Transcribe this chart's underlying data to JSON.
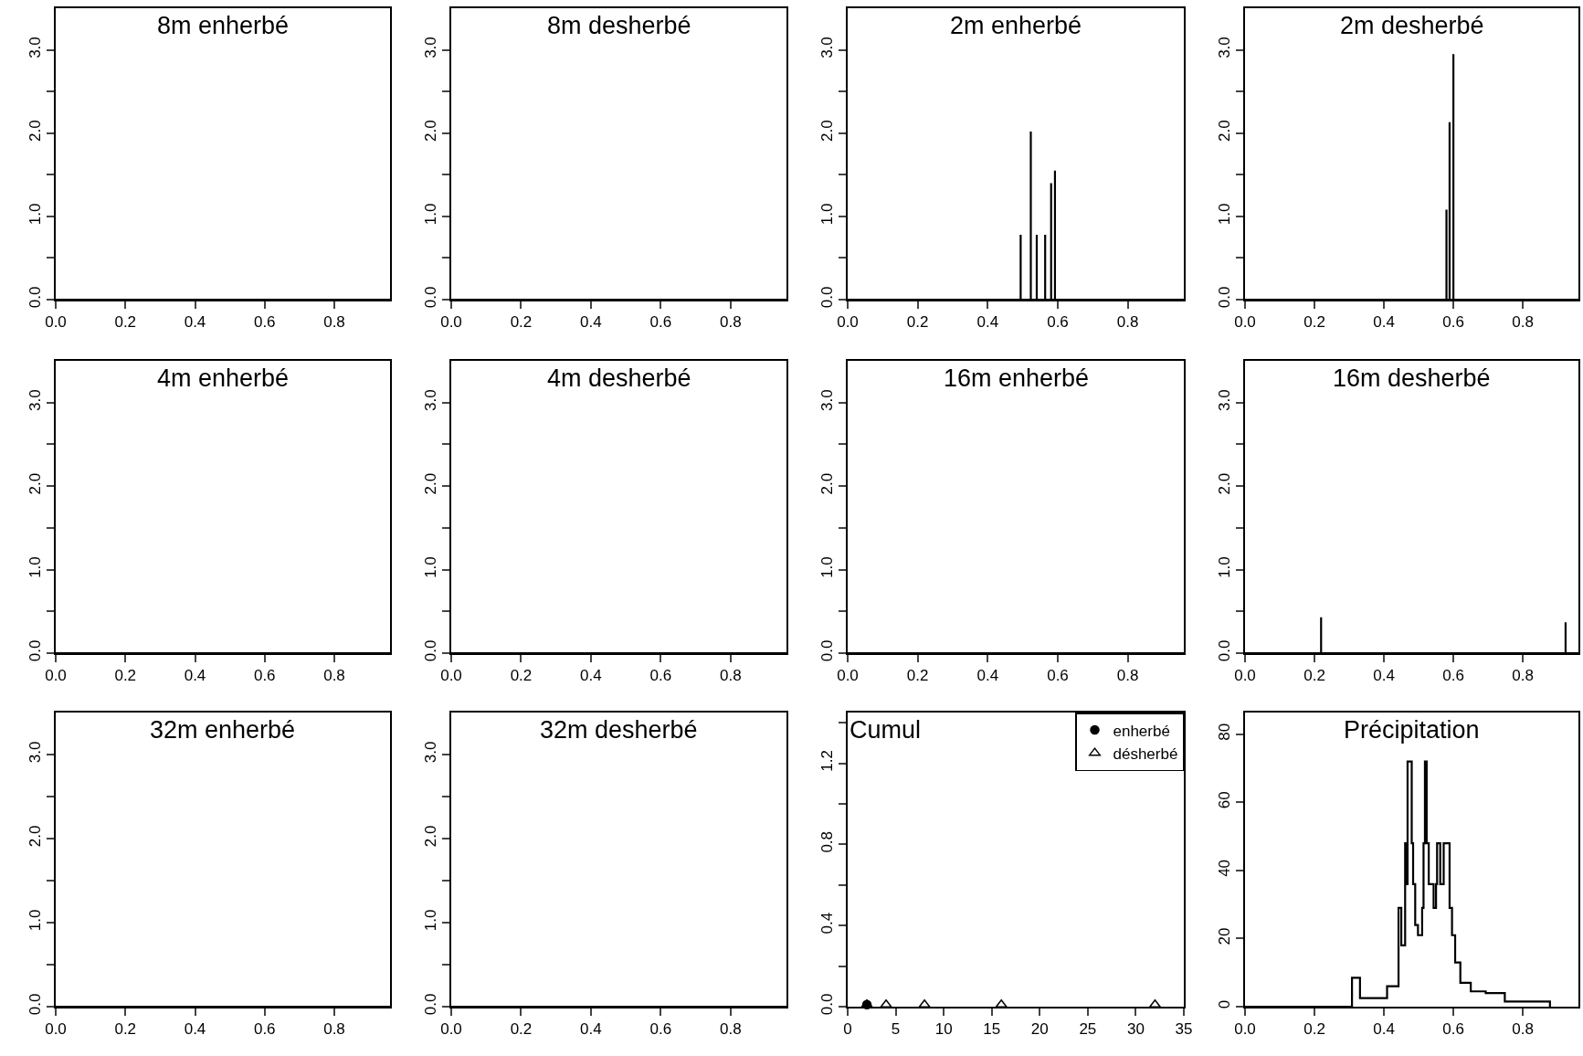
{
  "chart_data": [
    {
      "type": "line",
      "title": "8m enherbé",
      "xlim": [
        0,
        0.96
      ],
      "ylim": [
        0,
        3.5
      ],
      "xticks": [
        {
          "value": 0,
          "label": "0.0"
        },
        {
          "value": 0.2,
          "label": "0.2"
        },
        {
          "value": 0.4,
          "label": "0.4"
        },
        {
          "value": 0.6,
          "label": "0.6"
        },
        {
          "value": 0.8,
          "label": "0.8"
        }
      ],
      "yticks": [
        {
          "value": 0,
          "label": "0.0"
        },
        {
          "value": 0.5,
          "label": null
        },
        {
          "value": 1,
          "label": "1.0"
        },
        {
          "value": 1.5,
          "label": null
        },
        {
          "value": 2,
          "label": "2.0"
        },
        {
          "value": 2.5,
          "label": null
        },
        {
          "value": 3,
          "label": "3.0"
        }
      ],
      "series": [
        {
          "color": "#000000",
          "x": [
            0,
            0.96
          ],
          "values": [
            0,
            0
          ]
        }
      ]
    },
    {
      "type": "line",
      "title": "8m desherbé",
      "xlim": [
        0,
        0.96
      ],
      "ylim": [
        0,
        3.5
      ],
      "xticks": [
        {
          "value": 0,
          "label": "0.0"
        },
        {
          "value": 0.2,
          "label": "0.2"
        },
        {
          "value": 0.4,
          "label": "0.4"
        },
        {
          "value": 0.6,
          "label": "0.6"
        },
        {
          "value": 0.8,
          "label": "0.8"
        }
      ],
      "yticks": [
        {
          "value": 0,
          "label": "0.0"
        },
        {
          "value": 0.5,
          "label": null
        },
        {
          "value": 1,
          "label": "1.0"
        },
        {
          "value": 1.5,
          "label": null
        },
        {
          "value": 2,
          "label": "2.0"
        },
        {
          "value": 2.5,
          "label": null
        },
        {
          "value": 3,
          "label": "3.0"
        }
      ],
      "series": [
        {
          "color": "#000000",
          "x": [
            0,
            0.96
          ],
          "values": [
            0,
            0
          ]
        }
      ]
    },
    {
      "type": "line",
      "title": "2m enherbé",
      "xlim": [
        0,
        0.96
      ],
      "ylim": [
        0,
        3.5
      ],
      "xticks": [
        {
          "value": 0,
          "label": "0.0"
        },
        {
          "value": 0.2,
          "label": "0.2"
        },
        {
          "value": 0.4,
          "label": "0.4"
        },
        {
          "value": 0.6,
          "label": "0.6"
        },
        {
          "value": 0.8,
          "label": "0.8"
        }
      ],
      "yticks": [
        {
          "value": 0,
          "label": "0.0"
        },
        {
          "value": 0.5,
          "label": null
        },
        {
          "value": 1,
          "label": "1.0"
        },
        {
          "value": 1.5,
          "label": null
        },
        {
          "value": 2,
          "label": "2.0"
        },
        {
          "value": 2.5,
          "label": null
        },
        {
          "value": 3,
          "label": "3.0"
        }
      ],
      "series": [
        {
          "color": "#000000",
          "x": [
            0,
            0.494,
            0.494,
            0.494,
            0.523,
            0.523,
            0.523,
            0.54,
            0.54,
            0.54,
            0.564,
            0.564,
            0.564,
            0.581,
            0.581,
            0.581,
            0.592,
            0.592,
            0.592,
            0.96
          ],
          "values": [
            0,
            0,
            0.78,
            0,
            0,
            2.02,
            0,
            0,
            0.78,
            0,
            0,
            0.78,
            0,
            0,
            1.4,
            0,
            0,
            1.55,
            0,
            0
          ]
        }
      ]
    },
    {
      "type": "line",
      "title": "2m desherbé",
      "xlim": [
        0,
        0.96
      ],
      "ylim": [
        0,
        3.5
      ],
      "xticks": [
        {
          "value": 0,
          "label": "0.0"
        },
        {
          "value": 0.2,
          "label": "0.2"
        },
        {
          "value": 0.4,
          "label": "0.4"
        },
        {
          "value": 0.6,
          "label": "0.6"
        },
        {
          "value": 0.8,
          "label": "0.8"
        }
      ],
      "yticks": [
        {
          "value": 0,
          "label": "0.0"
        },
        {
          "value": 0.5,
          "label": null
        },
        {
          "value": 1,
          "label": "1.0"
        },
        {
          "value": 1.5,
          "label": null
        },
        {
          "value": 2,
          "label": "2.0"
        },
        {
          "value": 2.5,
          "label": null
        },
        {
          "value": 3,
          "label": "3.0"
        }
      ],
      "series": [
        {
          "color": "#000000",
          "x": [
            0,
            0.58,
            0.58,
            0.58,
            0.589,
            0.589,
            0.589,
            0.6,
            0.6,
            0.6,
            0.96
          ],
          "values": [
            0,
            0,
            1.08,
            0,
            0,
            2.13,
            0,
            0,
            2.95,
            0,
            0
          ]
        }
      ]
    },
    {
      "type": "line",
      "title": "4m enherbé",
      "xlim": [
        0,
        0.96
      ],
      "ylim": [
        0,
        3.5
      ],
      "xticks": [
        {
          "value": 0,
          "label": "0.0"
        },
        {
          "value": 0.2,
          "label": "0.2"
        },
        {
          "value": 0.4,
          "label": "0.4"
        },
        {
          "value": 0.6,
          "label": "0.6"
        },
        {
          "value": 0.8,
          "label": "0.8"
        }
      ],
      "yticks": [
        {
          "value": 0,
          "label": "0.0"
        },
        {
          "value": 0.5,
          "label": null
        },
        {
          "value": 1,
          "label": "1.0"
        },
        {
          "value": 1.5,
          "label": null
        },
        {
          "value": 2,
          "label": "2.0"
        },
        {
          "value": 2.5,
          "label": null
        },
        {
          "value": 3,
          "label": "3.0"
        }
      ],
      "series": [
        {
          "color": "#000000",
          "x": [
            0,
            0.96
          ],
          "values": [
            0,
            0
          ]
        }
      ]
    },
    {
      "type": "line",
      "title": "4m desherbé",
      "xlim": [
        0,
        0.96
      ],
      "ylim": [
        0,
        3.5
      ],
      "xticks": [
        {
          "value": 0,
          "label": "0.0"
        },
        {
          "value": 0.2,
          "label": "0.2"
        },
        {
          "value": 0.4,
          "label": "0.4"
        },
        {
          "value": 0.6,
          "label": "0.6"
        },
        {
          "value": 0.8,
          "label": "0.8"
        }
      ],
      "yticks": [
        {
          "value": 0,
          "label": "0.0"
        },
        {
          "value": 0.5,
          "label": null
        },
        {
          "value": 1,
          "label": "1.0"
        },
        {
          "value": 1.5,
          "label": null
        },
        {
          "value": 2,
          "label": "2.0"
        },
        {
          "value": 2.5,
          "label": null
        },
        {
          "value": 3,
          "label": "3.0"
        }
      ],
      "series": [
        {
          "color": "#000000",
          "x": [
            0,
            0.96
          ],
          "values": [
            0,
            0
          ]
        }
      ]
    },
    {
      "type": "line",
      "title": "16m enherbé",
      "xlim": [
        0,
        0.96
      ],
      "ylim": [
        0,
        3.5
      ],
      "xticks": [
        {
          "value": 0,
          "label": "0.0"
        },
        {
          "value": 0.2,
          "label": "0.2"
        },
        {
          "value": 0.4,
          "label": "0.4"
        },
        {
          "value": 0.6,
          "label": "0.6"
        },
        {
          "value": 0.8,
          "label": "0.8"
        }
      ],
      "yticks": [
        {
          "value": 0,
          "label": "0.0"
        },
        {
          "value": 0.5,
          "label": null
        },
        {
          "value": 1,
          "label": "1.0"
        },
        {
          "value": 1.5,
          "label": null
        },
        {
          "value": 2,
          "label": "2.0"
        },
        {
          "value": 2.5,
          "label": null
        },
        {
          "value": 3,
          "label": "3.0"
        }
      ],
      "series": [
        {
          "color": "#000000",
          "x": [
            0,
            0.96
          ],
          "values": [
            0,
            0
          ]
        }
      ]
    },
    {
      "type": "line",
      "title": "16m desherbé",
      "xlim": [
        0,
        0.96
      ],
      "ylim": [
        0,
        3.5
      ],
      "xticks": [
        {
          "value": 0,
          "label": "0.0"
        },
        {
          "value": 0.2,
          "label": "0.2"
        },
        {
          "value": 0.4,
          "label": "0.4"
        },
        {
          "value": 0.6,
          "label": "0.6"
        },
        {
          "value": 0.8,
          "label": "0.8"
        }
      ],
      "yticks": [
        {
          "value": 0,
          "label": "0.0"
        },
        {
          "value": 0.5,
          "label": null
        },
        {
          "value": 1,
          "label": "1.0"
        },
        {
          "value": 1.5,
          "label": null
        },
        {
          "value": 2,
          "label": "2.0"
        },
        {
          "value": 2.5,
          "label": null
        },
        {
          "value": 3,
          "label": "3.0"
        }
      ],
      "series": [
        {
          "color": "#000000",
          "x": [
            0,
            0.219,
            0.219,
            0.219,
            0.775,
            0.775,
            0.775,
            0.923,
            0.923,
            0.923,
            0.96
          ],
          "values": [
            0,
            0,
            0.43,
            0,
            0,
            0.01,
            0,
            0,
            0.37,
            0,
            0
          ]
        }
      ]
    },
    {
      "type": "line",
      "title": "32m enherbé",
      "xlim": [
        0,
        0.96
      ],
      "ylim": [
        0,
        3.5
      ],
      "xticks": [
        {
          "value": 0,
          "label": "0.0"
        },
        {
          "value": 0.2,
          "label": "0.2"
        },
        {
          "value": 0.4,
          "label": "0.4"
        },
        {
          "value": 0.6,
          "label": "0.6"
        },
        {
          "value": 0.8,
          "label": "0.8"
        }
      ],
      "yticks": [
        {
          "value": 0,
          "label": "0.0"
        },
        {
          "value": 0.5,
          "label": null
        },
        {
          "value": 1,
          "label": "1.0"
        },
        {
          "value": 1.5,
          "label": null
        },
        {
          "value": 2,
          "label": "2.0"
        },
        {
          "value": 2.5,
          "label": null
        },
        {
          "value": 3,
          "label": "3.0"
        }
      ],
      "series": [
        {
          "color": "#000000",
          "x": [
            0,
            0.96
          ],
          "values": [
            0,
            0
          ]
        }
      ]
    },
    {
      "type": "line",
      "title": "32m desherbé",
      "xlim": [
        0,
        0.96
      ],
      "ylim": [
        0,
        3.5
      ],
      "xticks": [
        {
          "value": 0,
          "label": "0.0"
        },
        {
          "value": 0.2,
          "label": "0.2"
        },
        {
          "value": 0.4,
          "label": "0.4"
        },
        {
          "value": 0.6,
          "label": "0.6"
        },
        {
          "value": 0.8,
          "label": "0.8"
        }
      ],
      "yticks": [
        {
          "value": 0,
          "label": "0.0"
        },
        {
          "value": 0.5,
          "label": null
        },
        {
          "value": 1,
          "label": "1.0"
        },
        {
          "value": 1.5,
          "label": null
        },
        {
          "value": 2,
          "label": "2.0"
        },
        {
          "value": 2.5,
          "label": null
        },
        {
          "value": 3,
          "label": "3.0"
        }
      ],
      "series": [
        {
          "color": "#000000",
          "x": [
            0,
            0.96
          ],
          "values": [
            0,
            0
          ]
        }
      ]
    },
    {
      "type": "scatter",
      "title": "Cumul",
      "legend": "top right",
      "xlim": [
        0,
        35
      ],
      "ylim": [
        0,
        1.45
      ],
      "xticks": [
        0,
        5,
        10,
        15,
        20,
        25,
        30,
        35
      ],
      "yticks": [
        {
          "value": 0,
          "label": "0.0"
        },
        {
          "value": 0.2,
          "label": null
        },
        {
          "value": 0.4,
          "label": "0.4"
        },
        {
          "value": 0.6,
          "label": null
        },
        {
          "value": 0.8,
          "label": "0.8"
        },
        {
          "value": 1,
          "label": null
        },
        {
          "value": 1.2,
          "label": "1.2"
        },
        {
          "value": 1.4,
          "label": null
        }
      ],
      "series": [
        {
          "name": "enherbé",
          "color": "#000000",
          "marker": "circle",
          "x": [
            2
          ],
          "values": [
            0.01
          ]
        },
        {
          "name": "désherbé",
          "color": "#000000",
          "marker": "triangle",
          "x": [
            2,
            4,
            8,
            16,
            32
          ],
          "values": [
            0.01,
            0.01,
            0.01,
            0.01,
            0.01
          ]
        }
      ]
    },
    {
      "type": "step",
      "title": "Précipitation",
      "xlim": [
        0,
        0.96
      ],
      "ylim": [
        0,
        86.4
      ],
      "xticks": [
        {
          "value": 0,
          "label": "0.0"
        },
        {
          "value": 0.2,
          "label": "0.2"
        },
        {
          "value": 0.4,
          "label": "0.4"
        },
        {
          "value": 0.6,
          "label": "0.6"
        },
        {
          "value": 0.8,
          "label": "0.8"
        }
      ],
      "yticks": [
        0,
        20,
        40,
        60,
        80
      ],
      "series": [
        {
          "color": "#000000",
          "x": [
            0,
            0.308,
            0.331,
            0.409,
            0.442,
            0.45,
            0.461,
            0.466,
            0.468,
            0.48,
            0.484,
            0.49,
            0.498,
            0.51,
            0.514,
            0.518,
            0.523,
            0.529,
            0.543,
            0.55,
            0.553,
            0.562,
            0.572,
            0.589,
            0.596,
            0.605,
            0.62,
            0.65,
            0.693,
            0.748,
            0.878
          ],
          "values": [
            0,
            8.5,
            2.5,
            6,
            29,
            18,
            48,
            36,
            72,
            48,
            36,
            24,
            21,
            29,
            48,
            72,
            48,
            36,
            29,
            36,
            48,
            36,
            48,
            29,
            21,
            13,
            7,
            4.5,
            4,
            1.5,
            0
          ]
        }
      ]
    }
  ]
}
